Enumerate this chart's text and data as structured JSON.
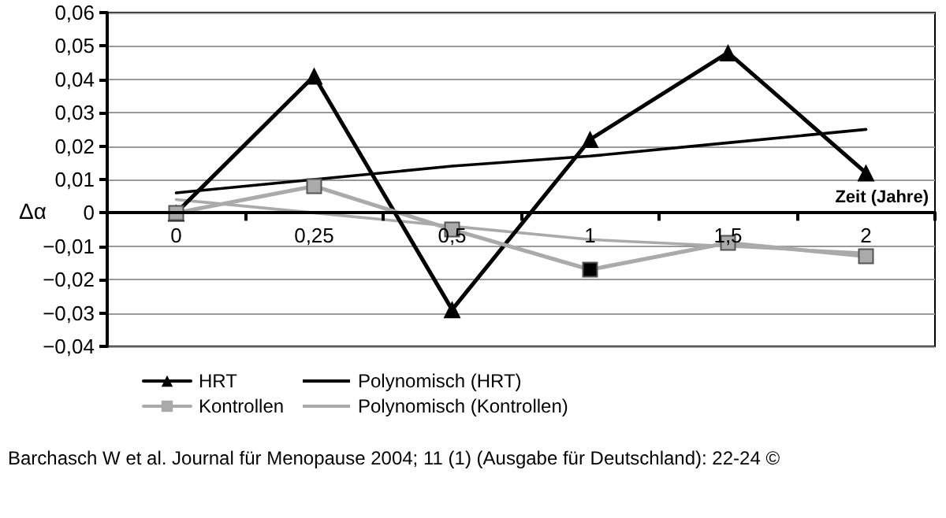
{
  "chart_data": {
    "type": "line",
    "categories": [
      "0",
      "0,25",
      "0,5",
      "1",
      "1,5",
      "2"
    ],
    "xlabel": "Zeit (Jahre)",
    "ylabel": "Δα",
    "series": [
      {
        "name": "HRT",
        "color": "#000000",
        "marker": "triangle",
        "values": [
          0,
          0.041,
          -0.029,
          0.022,
          0.048,
          0.012
        ]
      },
      {
        "name": "Kontrollen",
        "color": "#aaaaaa",
        "marker": "square",
        "colors": [
          "#aaaaaa",
          "#aaaaaa",
          "#aaaaaa",
          "#000000",
          "#aaaaaa",
          "#aaaaaa"
        ],
        "values": [
          0,
          0.008,
          -0.005,
          -0.017,
          -0.009,
          -0.013
        ]
      },
      {
        "name": "Polynomisch (HRT)",
        "color": "#000000",
        "marker": "none",
        "values": [
          0.006,
          0.01,
          0.014,
          0.017,
          0.021,
          0.025
        ]
      },
      {
        "name": "Polynomisch (Kontrollen)",
        "color": "#aaaaaa",
        "marker": "none",
        "values": [
          0.004,
          0.0,
          -0.004,
          -0.008,
          -0.01,
          -0.012
        ]
      }
    ],
    "ylim": [
      -0.04,
      0.06
    ],
    "yticks": [
      {
        "value": -0.04,
        "label": "−0,04"
      },
      {
        "value": -0.03,
        "label": "−0,03"
      },
      {
        "value": -0.02,
        "label": "−0,02"
      },
      {
        "value": -0.01,
        "label": "−0,01"
      },
      0,
      {
        "value": 0.01,
        "label": "0,01"
      },
      {
        "value": 0.02,
        "label": "0,02"
      },
      {
        "value": 0.03,
        "label": "0,03"
      },
      {
        "value": 0.04,
        "label": "0,04"
      },
      {
        "value": 0.05,
        "label": "0,05"
      },
      {
        "value": 0.06,
        "label": "0,06"
      }
    ],
    "grid": "y",
    "legend": "bottom",
    "annotations": [
      "Barchasch W et al. Journal für Menopause 2004; 11 (1) (Ausgabe für Deutschland): 22-24 ©"
    ]
  }
}
